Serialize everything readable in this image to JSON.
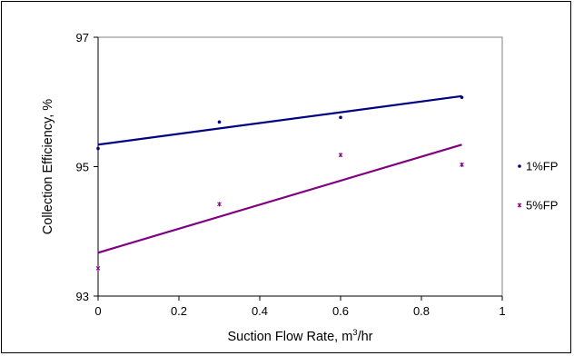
{
  "chart_data": {
    "type": "scatter",
    "xlabel": "Suction Flow Rate, m",
    "xlabel_sup": "3",
    "xlabel_tail": "/hr",
    "ylabel": "Collection Efficiency, %",
    "xlim": [
      0,
      1
    ],
    "ylim": [
      93,
      97
    ],
    "x_ticks": [
      0,
      0.2,
      0.4,
      0.6,
      0.8,
      1
    ],
    "x_tick_labels": [
      "0",
      "0.2",
      "0.4",
      "0.6",
      "0.8",
      "1"
    ],
    "y_ticks": [
      93,
      95,
      97
    ],
    "y_tick_labels": [
      "93",
      "95",
      "97"
    ],
    "grid": false,
    "legend_position": "right",
    "series": [
      {
        "name": "1%FP",
        "color": "#000080",
        "marker": "dot",
        "x": [
          0,
          0.3,
          0.6,
          0.9
        ],
        "y": [
          95.28,
          95.69,
          95.76,
          96.07
        ],
        "trendline": {
          "x": [
            0,
            0.9
          ],
          "y": [
            95.34,
            96.09
          ]
        }
      },
      {
        "name": "5%FP",
        "color": "#800080",
        "marker": "star",
        "x": [
          0,
          0.3,
          0.6,
          0.9
        ],
        "y": [
          93.43,
          94.42,
          95.18,
          95.03
        ],
        "trendline": {
          "x": [
            0,
            0.9
          ],
          "y": [
            93.67,
            95.34
          ]
        }
      }
    ]
  }
}
